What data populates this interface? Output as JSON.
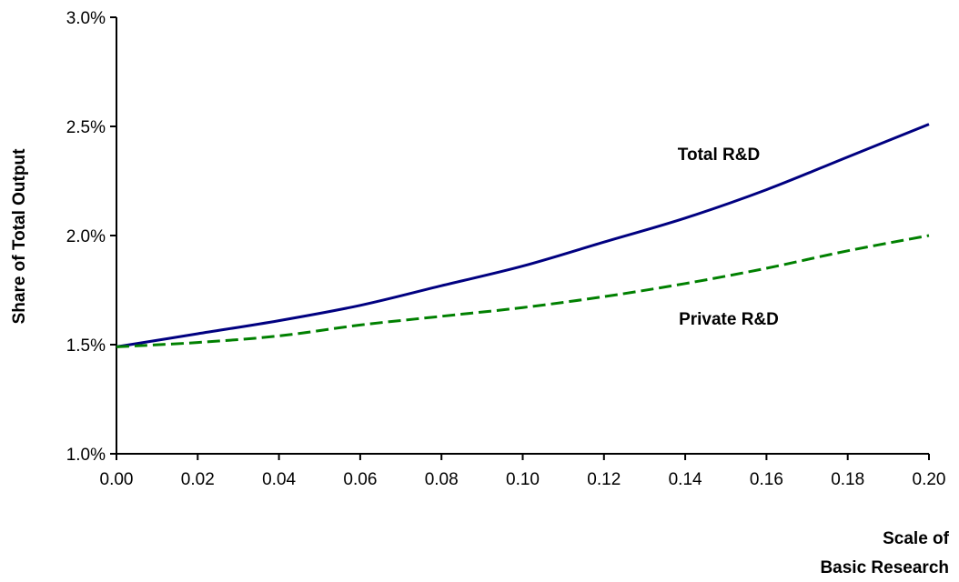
{
  "chart_data": {
    "type": "line",
    "title": "",
    "ylabel": "Share of Total Output",
    "xlabel_lines": [
      "Scale of",
      "Basic Research"
    ],
    "xlim": [
      0,
      0.2
    ],
    "ylim": [
      0.01,
      0.03
    ],
    "x_ticks": [
      "0.00",
      "0.02",
      "0.04",
      "0.06",
      "0.08",
      "0.10",
      "0.12",
      "0.14",
      "0.16",
      "0.18",
      "0.20"
    ],
    "y_ticks": [
      "1.0%",
      "1.5%",
      "2.0%",
      "2.5%",
      "3.0%"
    ],
    "grid": false,
    "legend": "inline labels",
    "x": [
      0.0,
      0.02,
      0.04,
      0.06,
      0.08,
      0.1,
      0.12,
      0.14,
      0.16,
      0.18,
      0.2
    ],
    "series": [
      {
        "name": "Total R&D",
        "color": "#000080",
        "style": "solid",
        "values": [
          0.0149,
          0.0155,
          0.0161,
          0.0168,
          0.0177,
          0.0186,
          0.0197,
          0.0208,
          0.0221,
          0.0236,
          0.0251
        ]
      },
      {
        "name": "Private R&D",
        "color": "#008000",
        "style": "dashed",
        "values": [
          0.0149,
          0.0151,
          0.0154,
          0.0159,
          0.0163,
          0.0167,
          0.0172,
          0.0178,
          0.0185,
          0.0193,
          0.02
        ]
      }
    ]
  }
}
